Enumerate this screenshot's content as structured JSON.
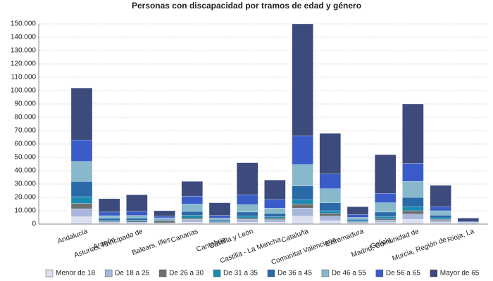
{
  "chart_data": {
    "type": "stacked_bar",
    "title": "Personas con discapacidad por tramos de edad y género",
    "categories": [
      "Andalucía",
      "Aragón",
      "Asturias, Principado de",
      "Balears, Illes",
      "Canarias",
      "Cantabria",
      "Castilla y León",
      "Castilla - La Mancha",
      "Cataluña",
      "Comunitat Valenciana",
      "Extremadura",
      "Galicia",
      "Madrid, Comunidad de",
      "Murcia, Región de",
      "Rioja, La"
    ],
    "series": [
      {
        "name": "Menor de 18",
        "color": "#dce0f0",
        "values": [
          5500,
          600,
          500,
          400,
          1500,
          400,
          1500,
          1500,
          6000,
          2500,
          500,
          1200,
          3500,
          1200,
          150
        ]
      },
      {
        "name": "De 18 a 25",
        "color": "#a8b8dc",
        "values": [
          6000,
          900,
          1000,
          600,
          2000,
          600,
          2000,
          1800,
          6000,
          3500,
          800,
          1800,
          4000,
          1500,
          250
        ]
      },
      {
        "name": "De 26 a 30",
        "color": "#6e6e6e",
        "values": [
          4000,
          500,
          700,
          1400,
          1000,
          400,
          1000,
          1000,
          3000,
          2000,
          500,
          1000,
          2500,
          800,
          150
        ]
      },
      {
        "name": "De 31 a 35",
        "color": "#1a8ab0",
        "values": [
          5000,
          800,
          800,
          400,
          2000,
          500,
          1500,
          1200,
          3000,
          2000,
          700,
          1500,
          3000,
          1200,
          200
        ]
      },
      {
        "name": "De 36 a 45",
        "color": "#2a6aa8",
        "values": [
          11500,
          1500,
          1500,
          700,
          3000,
          1100,
          3000,
          2500,
          10500,
          6000,
          1000,
          3500,
          7000,
          2000,
          300
        ]
      },
      {
        "name": "De 46 a 55",
        "color": "#88b8cc",
        "values": [
          15000,
          2000,
          2000,
          1200,
          5500,
          1500,
          5500,
          4000,
          16000,
          10500,
          1500,
          7000,
          12000,
          3300,
          450
        ]
      },
      {
        "name": "De 56 a 65",
        "color": "#3a5cc8",
        "values": [
          16000,
          2700,
          3000,
          1300,
          6000,
          2000,
          7500,
          6500,
          21500,
          11000,
          2000,
          7000,
          13500,
          3000,
          500
        ]
      },
      {
        "name": "Mayor de 65",
        "color": "#3c4a7c",
        "values": [
          39000,
          10000,
          12500,
          4000,
          11000,
          9500,
          24000,
          14500,
          84000,
          30500,
          6000,
          29000,
          44500,
          16000,
          2500
        ]
      }
    ],
    "ylim": [
      0,
      150000
    ],
    "yticks": [
      0,
      {
        "value": 10000,
        "label": "10.000"
      },
      {
        "value": 20000,
        "label": "20.000"
      },
      {
        "value": 30000,
        "label": "30.000"
      },
      {
        "value": 40000,
        "label": "40.000"
      },
      {
        "value": 50000,
        "label": "50.000"
      },
      {
        "value": 60000,
        "label": "60.000"
      },
      {
        "value": 70000,
        "label": "70.000"
      },
      {
        "value": 80000,
        "label": "80.000"
      },
      {
        "value": 90000,
        "label": "90.000"
      },
      {
        "value": 100000,
        "label": "100.000"
      },
      {
        "value": 110000,
        "label": "110.000"
      },
      {
        "value": 120000,
        "label": "120.000"
      },
      {
        "value": 130000,
        "label": "130.000"
      },
      {
        "value": 140000,
        "label": "140.000"
      },
      {
        "value": 150000,
        "label": "150.000"
      }
    ],
    "grid": true
  }
}
